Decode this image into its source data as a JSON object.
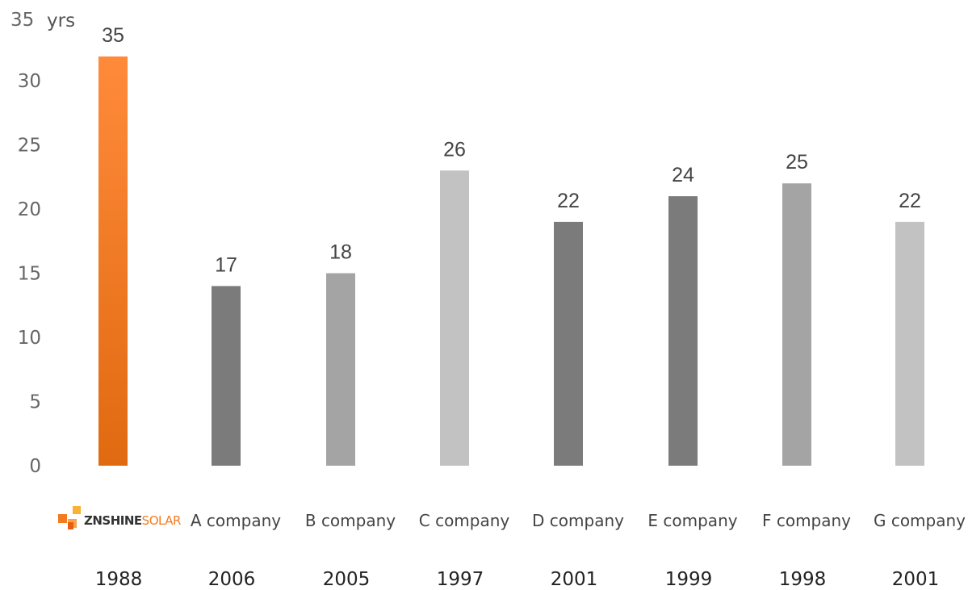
{
  "chart_data": {
    "type": "bar",
    "title": "",
    "xlabel": "",
    "ylabel": "",
    "y_unit": "yrs",
    "ylim": [
      0,
      35
    ],
    "yticks": [
      0,
      5,
      10,
      15,
      20,
      25,
      30,
      35
    ],
    "grid": false,
    "legend": "none",
    "categories": [
      "ZNSHINE SOLAR",
      "A company",
      "B company",
      "C company",
      "D company",
      "E company",
      "F company",
      "G company"
    ],
    "founding_years": [
      "1988",
      "2006",
      "2005",
      "1997",
      "2001",
      "1999",
      "1998",
      "2001"
    ],
    "values": [
      35,
      17,
      18,
      26,
      22,
      24,
      25,
      22
    ],
    "bar_colors": [
      "#f27b1e",
      "#7b7b7b",
      "#a4a4a4",
      "#c2c2c2",
      "#7b7b7b",
      "#7b7b7b",
      "#a4a4a4",
      "#c2c2c2"
    ],
    "logo": {
      "name": "znshine-solar-logo",
      "text_dark": "ZNSHINE",
      "text_accent": "SOLAR",
      "color_dark": "#333333",
      "color_accent": "#f47a20"
    }
  }
}
